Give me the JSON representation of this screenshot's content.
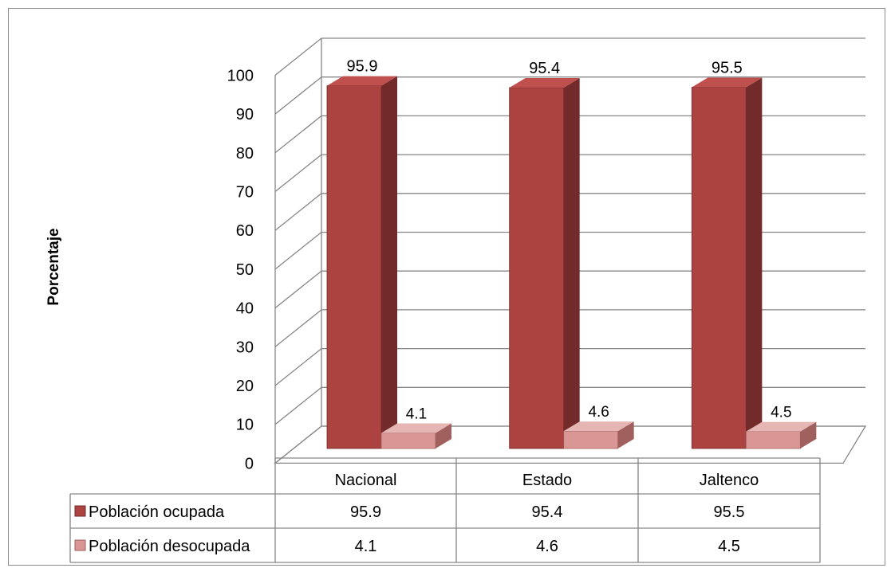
{
  "chart_data": {
    "type": "bar",
    "variant": "3d-clustered-column-with-data-table",
    "title": "",
    "xlabel": "",
    "ylabel": "Porcentaje",
    "ylim": [
      0,
      100
    ],
    "y_ticks": [
      0,
      10,
      20,
      30,
      40,
      50,
      60,
      70,
      80,
      90,
      100
    ],
    "grid": true,
    "categories": [
      "Nacional",
      "Estado",
      "Jaltenco"
    ],
    "series": [
      {
        "name": "Población ocupada",
        "values": [
          95.9,
          95.4,
          95.5
        ],
        "color": "#ad4340"
      },
      {
        "name": "Población desocupada",
        "values": [
          4.1,
          4.6,
          4.5
        ],
        "color": "#d99694"
      }
    ],
    "data_labels": {
      "ocupada": [
        "95.9",
        "95.4",
        "95.5"
      ],
      "desocupada": [
        "4.1",
        "4.6",
        "4.5"
      ]
    },
    "data_table": {
      "rows": [
        {
          "label": "Población ocupada",
          "cells": [
            "95.9",
            "95.4",
            "95.5"
          ]
        },
        {
          "label": "Población desocupada",
          "cells": [
            "4.1",
            "4.6",
            "4.5"
          ]
        }
      ]
    }
  }
}
